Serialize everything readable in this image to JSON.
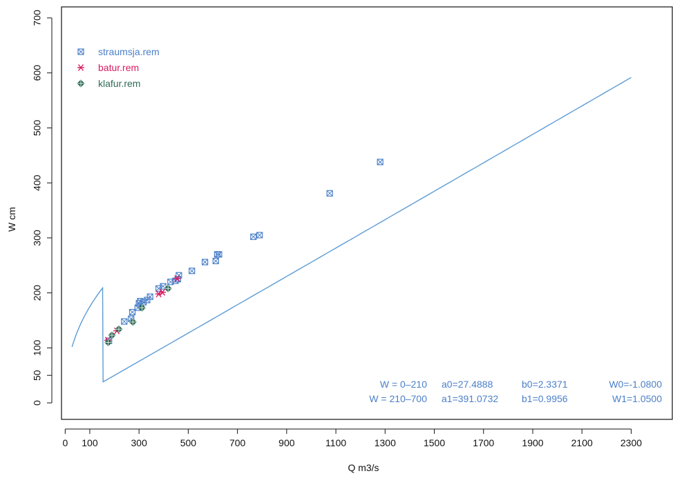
{
  "colors": {
    "straumsja": "#4a7fc8",
    "batur": "#d81b60",
    "klafur": "#2f6b55",
    "curve": "#5b9bd5",
    "equation_text": "#4a7fc8",
    "axis": "#111111"
  },
  "chart_data": {
    "type": "scatter",
    "title": "",
    "xlabel": "Q m3/s",
    "ylabel": "W cm",
    "xlim": [
      -15,
      2470
    ],
    "ylim": [
      -30,
      720
    ],
    "x_ticks": [
      0,
      100,
      300,
      500,
      700,
      900,
      1100,
      1300,
      1500,
      1700,
      1900,
      2100,
      2300
    ],
    "y_ticks": [
      0,
      50,
      100,
      200,
      300,
      400,
      500,
      600,
      700
    ],
    "grid": false,
    "legend_position": "top-left",
    "series": [
      {
        "name": "straumsja.rem",
        "marker": "boxed-x",
        "color_key": "straumsja",
        "points": [
          [
            178,
            113
          ],
          [
            240,
            148
          ],
          [
            268,
            153
          ],
          [
            273,
            165
          ],
          [
            295,
            173
          ],
          [
            300,
            181
          ],
          [
            305,
            185
          ],
          [
            318,
            183
          ],
          [
            333,
            187
          ],
          [
            345,
            193
          ],
          [
            380,
            208
          ],
          [
            398,
            212
          ],
          [
            428,
            220
          ],
          [
            448,
            222
          ],
          [
            458,
            225
          ],
          [
            462,
            232
          ],
          [
            515,
            240
          ],
          [
            568,
            256
          ],
          [
            612,
            258
          ],
          [
            618,
            270
          ],
          [
            625,
            270
          ],
          [
            765,
            302
          ],
          [
            790,
            305
          ],
          [
            1075,
            381
          ],
          [
            1280,
            438
          ]
        ]
      },
      {
        "name": "batur.rem",
        "marker": "asterisk",
        "color_key": "batur",
        "points": [
          [
            173,
            114
          ],
          [
            210,
            131
          ],
          [
            380,
            198
          ],
          [
            395,
            201
          ],
          [
            455,
            226
          ]
        ]
      },
      {
        "name": "klafur.rem",
        "marker": "diamond",
        "color_key": "klafur",
        "points": [
          [
            175,
            110
          ],
          [
            190,
            123
          ],
          [
            218,
            134
          ],
          [
            275,
            147
          ],
          [
            312,
            173
          ],
          [
            418,
            208
          ]
        ]
      }
    ],
    "rating_curve": {
      "segments": [
        {
          "range": "W = 0–210",
          "a": "a0=27.4888",
          "b": "b0=2.3371",
          "w": "W0=-1.0800"
        },
        {
          "range": "W = 210–700",
          "a": "a1=391.0732",
          "b": "b1=0.9956",
          "w": "W1=1.0500"
        }
      ],
      "q_range": [
        28,
        2300
      ]
    }
  }
}
